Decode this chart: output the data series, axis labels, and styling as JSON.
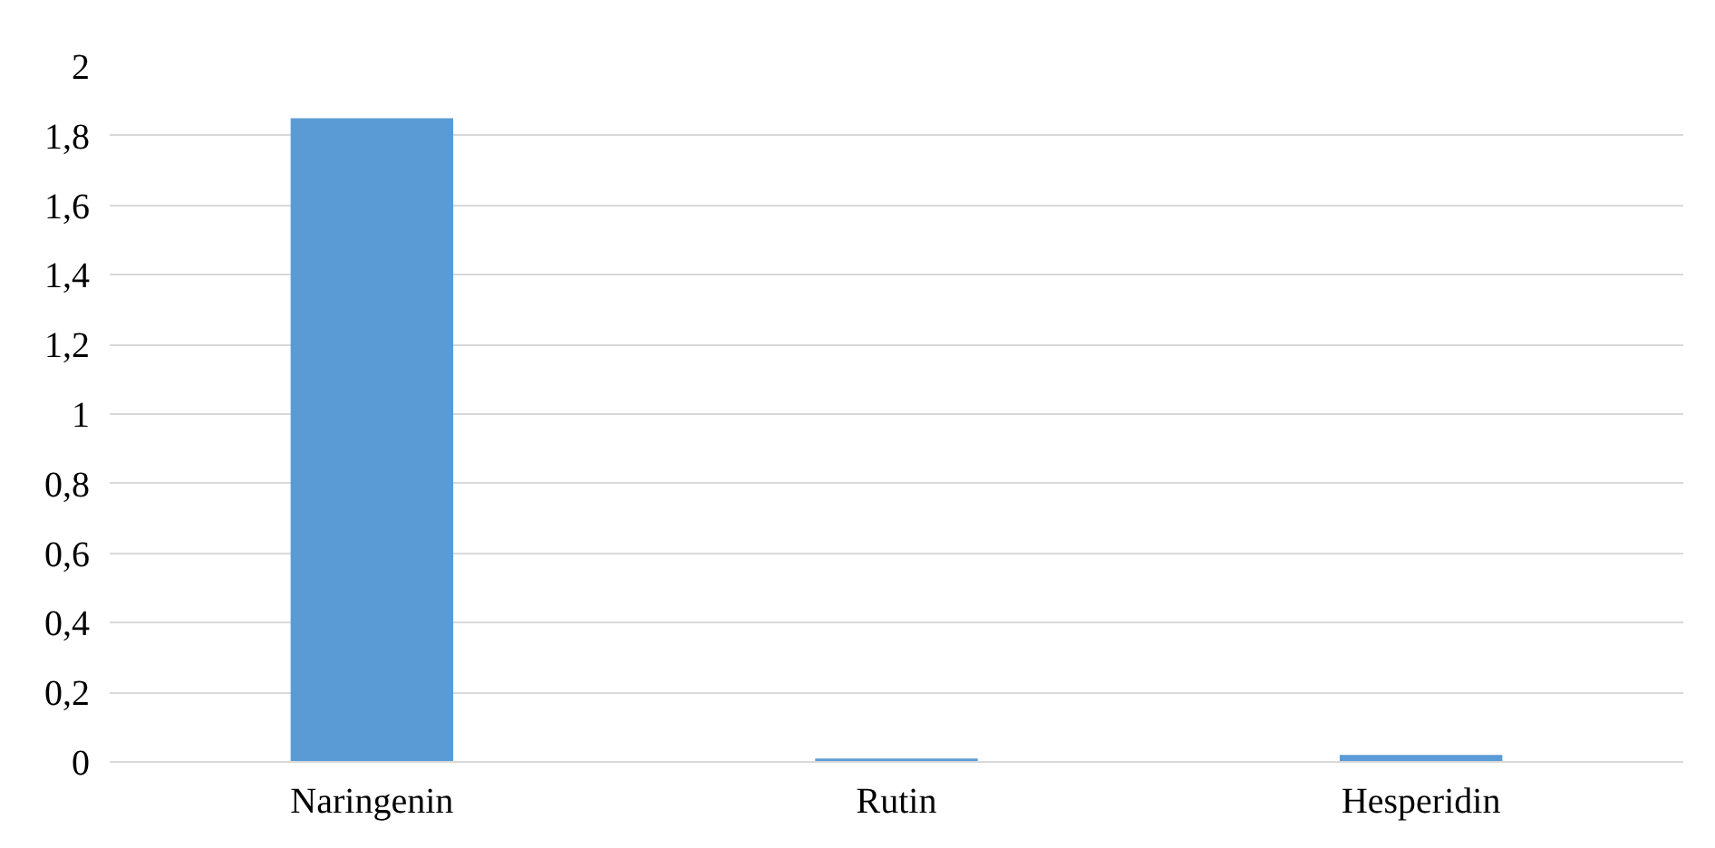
{
  "chart_data": {
    "type": "bar",
    "categories": [
      "Naringenin",
      "Rutin",
      "Hesperidin"
    ],
    "values": [
      1.85,
      0.01,
      0.02
    ],
    "color": "#5b9bd5",
    "ylim": [
      0,
      2
    ],
    "yticks": [
      0,
      {
        "value": 0.2,
        "label": "0,2"
      },
      {
        "value": 0.4,
        "label": "0,4"
      },
      {
        "value": 0.6,
        "label": "0,6"
      },
      {
        "value": 0.8,
        "label": "0,8"
      },
      1,
      {
        "value": 1.2,
        "label": "1,2"
      },
      {
        "value": 1.4,
        "label": "1,4"
      },
      {
        "value": 1.6,
        "label": "1,6"
      },
      {
        "value": 1.8,
        "label": "1,8"
      },
      2
    ],
    "grid": "y"
  }
}
